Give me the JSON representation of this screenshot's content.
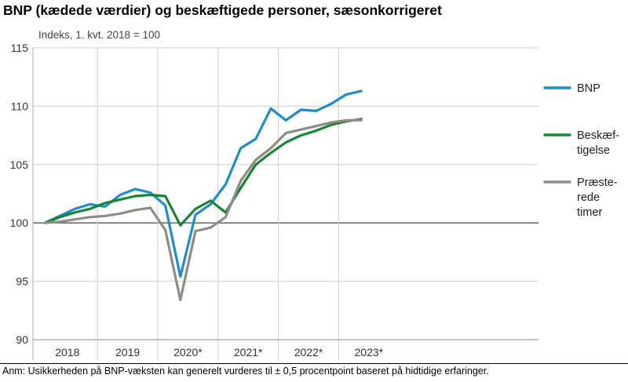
{
  "chart_data": {
    "type": "line",
    "title": "BNP (kædede værdier) og beskæftigede personer, sæsonkorrigeret",
    "subtitle": "Indeks, 1. kvt. 2018  = 100",
    "ylim": [
      90,
      115
    ],
    "yticks": [
      "115",
      "110",
      "105",
      "100",
      "95",
      "90"
    ],
    "year_labels": [
      "2018",
      "2019",
      "2020*",
      "2021*",
      "2022*",
      "2023*"
    ],
    "x": [
      "2018K1",
      "2018K2",
      "2018K3",
      "2018K4",
      "2019K1",
      "2019K2",
      "2019K3",
      "2019K4",
      "2020K1",
      "2020K2",
      "2020K3",
      "2020K4",
      "2021K1",
      "2021K2",
      "2021K3",
      "2021K4",
      "2022K1",
      "2022K2",
      "2022K3",
      "2022K4",
      "2023K1",
      "2023K2"
    ],
    "reference_line": 100,
    "series": [
      {
        "name": "BNP",
        "color": "#1f8dcc",
        "values": [
          100.0,
          100.6,
          101.2,
          101.6,
          101.4,
          102.4,
          102.9,
          102.6,
          101.5,
          95.4,
          100.7,
          101.6,
          103.3,
          106.4,
          107.2,
          109.8,
          108.8,
          109.7,
          109.6,
          110.2,
          111.0,
          111.3
        ]
      },
      {
        "name": "Beskæf-tigelse",
        "color": "#178735",
        "values": [
          100.0,
          100.5,
          100.9,
          101.2,
          101.7,
          102.0,
          102.3,
          102.4,
          102.3,
          99.8,
          101.2,
          101.9,
          100.9,
          103.0,
          105.0,
          106.0,
          106.9,
          107.5,
          107.9,
          108.4,
          108.7,
          108.9
        ]
      },
      {
        "name": "Præste-rede timer",
        "color": "#8e8c84",
        "values": [
          100.0,
          100.1,
          100.3,
          100.5,
          100.6,
          100.8,
          101.1,
          101.3,
          99.4,
          93.4,
          99.3,
          99.6,
          100.5,
          103.6,
          105.4,
          106.4,
          107.7,
          108.0,
          108.3,
          108.6,
          108.8,
          108.8
        ]
      }
    ],
    "legend": [
      {
        "lines": [
          "BNP"
        ]
      },
      {
        "lines": [
          "Beskæf-",
          "tigelse"
        ]
      },
      {
        "lines": [
          "Præste-",
          "rede",
          "timer"
        ]
      }
    ]
  },
  "footnote": "Anm: Usikkerheden på BNP-væksten kan generelt vurderes til ± 0,5 procentpoint baseret på hidtidige erfaringer."
}
